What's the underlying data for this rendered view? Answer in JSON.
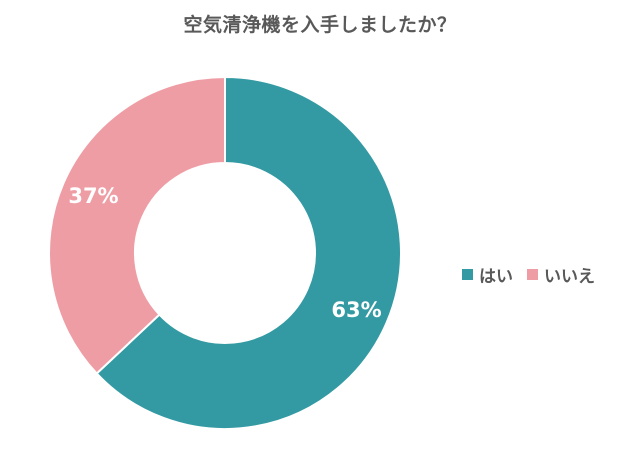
{
  "chart_data": {
    "type": "pie",
    "title": "空気清浄機を入手しましたか？",
    "categories": [
      "はい",
      "いいえ"
    ],
    "values": [
      63,
      37
    ],
    "labels": [
      "63%",
      "37%"
    ],
    "colors": [
      "#339aa3",
      "#ef9da5"
    ],
    "legend": "right",
    "donut": true
  }
}
